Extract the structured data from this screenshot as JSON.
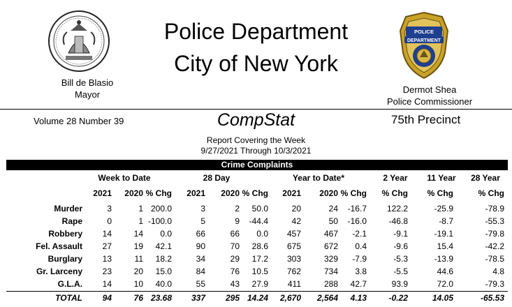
{
  "header": {
    "title_line1": "Police Department",
    "title_line2": "City of New York",
    "mayor_name": "Bill de Blasio",
    "mayor_title": "Mayor",
    "commissioner_name": "Dermot Shea",
    "commissioner_title": "Police Commissioner"
  },
  "report": {
    "volume": "Volume 28  Number  39",
    "compstat": "CompStat",
    "precinct": "75th Precinct",
    "covering": "Report Covering the Week",
    "period": "9/27/2021  Through  10/3/2021"
  },
  "table": {
    "banner": "Crime Complaints",
    "groups": [
      "Week to Date",
      "28 Day",
      "Year to Date*",
      "2 Year",
      "11 Year",
      "28 Year"
    ],
    "columns": [
      "2021",
      "2020",
      "% Chg",
      "2021",
      "2020",
      "% Chg",
      "2021",
      "2020",
      "% Chg",
      "% Chg",
      "% Chg",
      "% Chg"
    ],
    "rows": [
      {
        "label": "Murder",
        "values": [
          "3",
          "1",
          "200.0",
          "3",
          "2",
          "50.0",
          "20",
          "24",
          "-16.7",
          "122.2",
          "-25.9",
          "-78.9"
        ]
      },
      {
        "label": "Rape",
        "values": [
          "0",
          "1",
          "-100.0",
          "5",
          "9",
          "-44.4",
          "42",
          "50",
          "-16.0",
          "-46.8",
          "-8.7",
          "-55.3"
        ]
      },
      {
        "label": "Robbery",
        "values": [
          "14",
          "14",
          "0.0",
          "66",
          "66",
          "0.0",
          "457",
          "467",
          "-2.1",
          "-9.1",
          "-19.1",
          "-79.8"
        ]
      },
      {
        "label": "Fel. Assault",
        "values": [
          "27",
          "19",
          "42.1",
          "90",
          "70",
          "28.6",
          "675",
          "672",
          "0.4",
          "-9.6",
          "15.4",
          "-42.2"
        ]
      },
      {
        "label": "Burglary",
        "values": [
          "13",
          "11",
          "18.2",
          "34",
          "29",
          "17.2",
          "303",
          "329",
          "-7.9",
          "-5.3",
          "-13.9",
          "-78.5"
        ]
      },
      {
        "label": "Gr. Larceny",
        "values": [
          "23",
          "20",
          "15.0",
          "84",
          "76",
          "10.5",
          "762",
          "734",
          "3.8",
          "-5.5",
          "44.6",
          "4.8"
        ]
      },
      {
        "label": "G.L.A.",
        "values": [
          "14",
          "10",
          "40.0",
          "55",
          "43",
          "27.9",
          "411",
          "288",
          "42.7",
          "93.9",
          "72.0",
          "-79.3"
        ]
      }
    ],
    "total": {
      "label": "TOTAL",
      "values": [
        "94",
        "76",
        "23.68",
        "337",
        "295",
        "14.24",
        "2,670",
        "2,564",
        "4.13",
        "-0.22",
        "14.05",
        "-65.53"
      ]
    }
  },
  "colors": {
    "text": "#000000",
    "banner_bg": "#000000",
    "banner_text": "#ffffff",
    "badge_gold": "#c9a227",
    "badge_blue": "#1f3f8f"
  },
  "icons": {
    "left_logo": "nyc-seal",
    "right_logo": "nypd-badge"
  }
}
